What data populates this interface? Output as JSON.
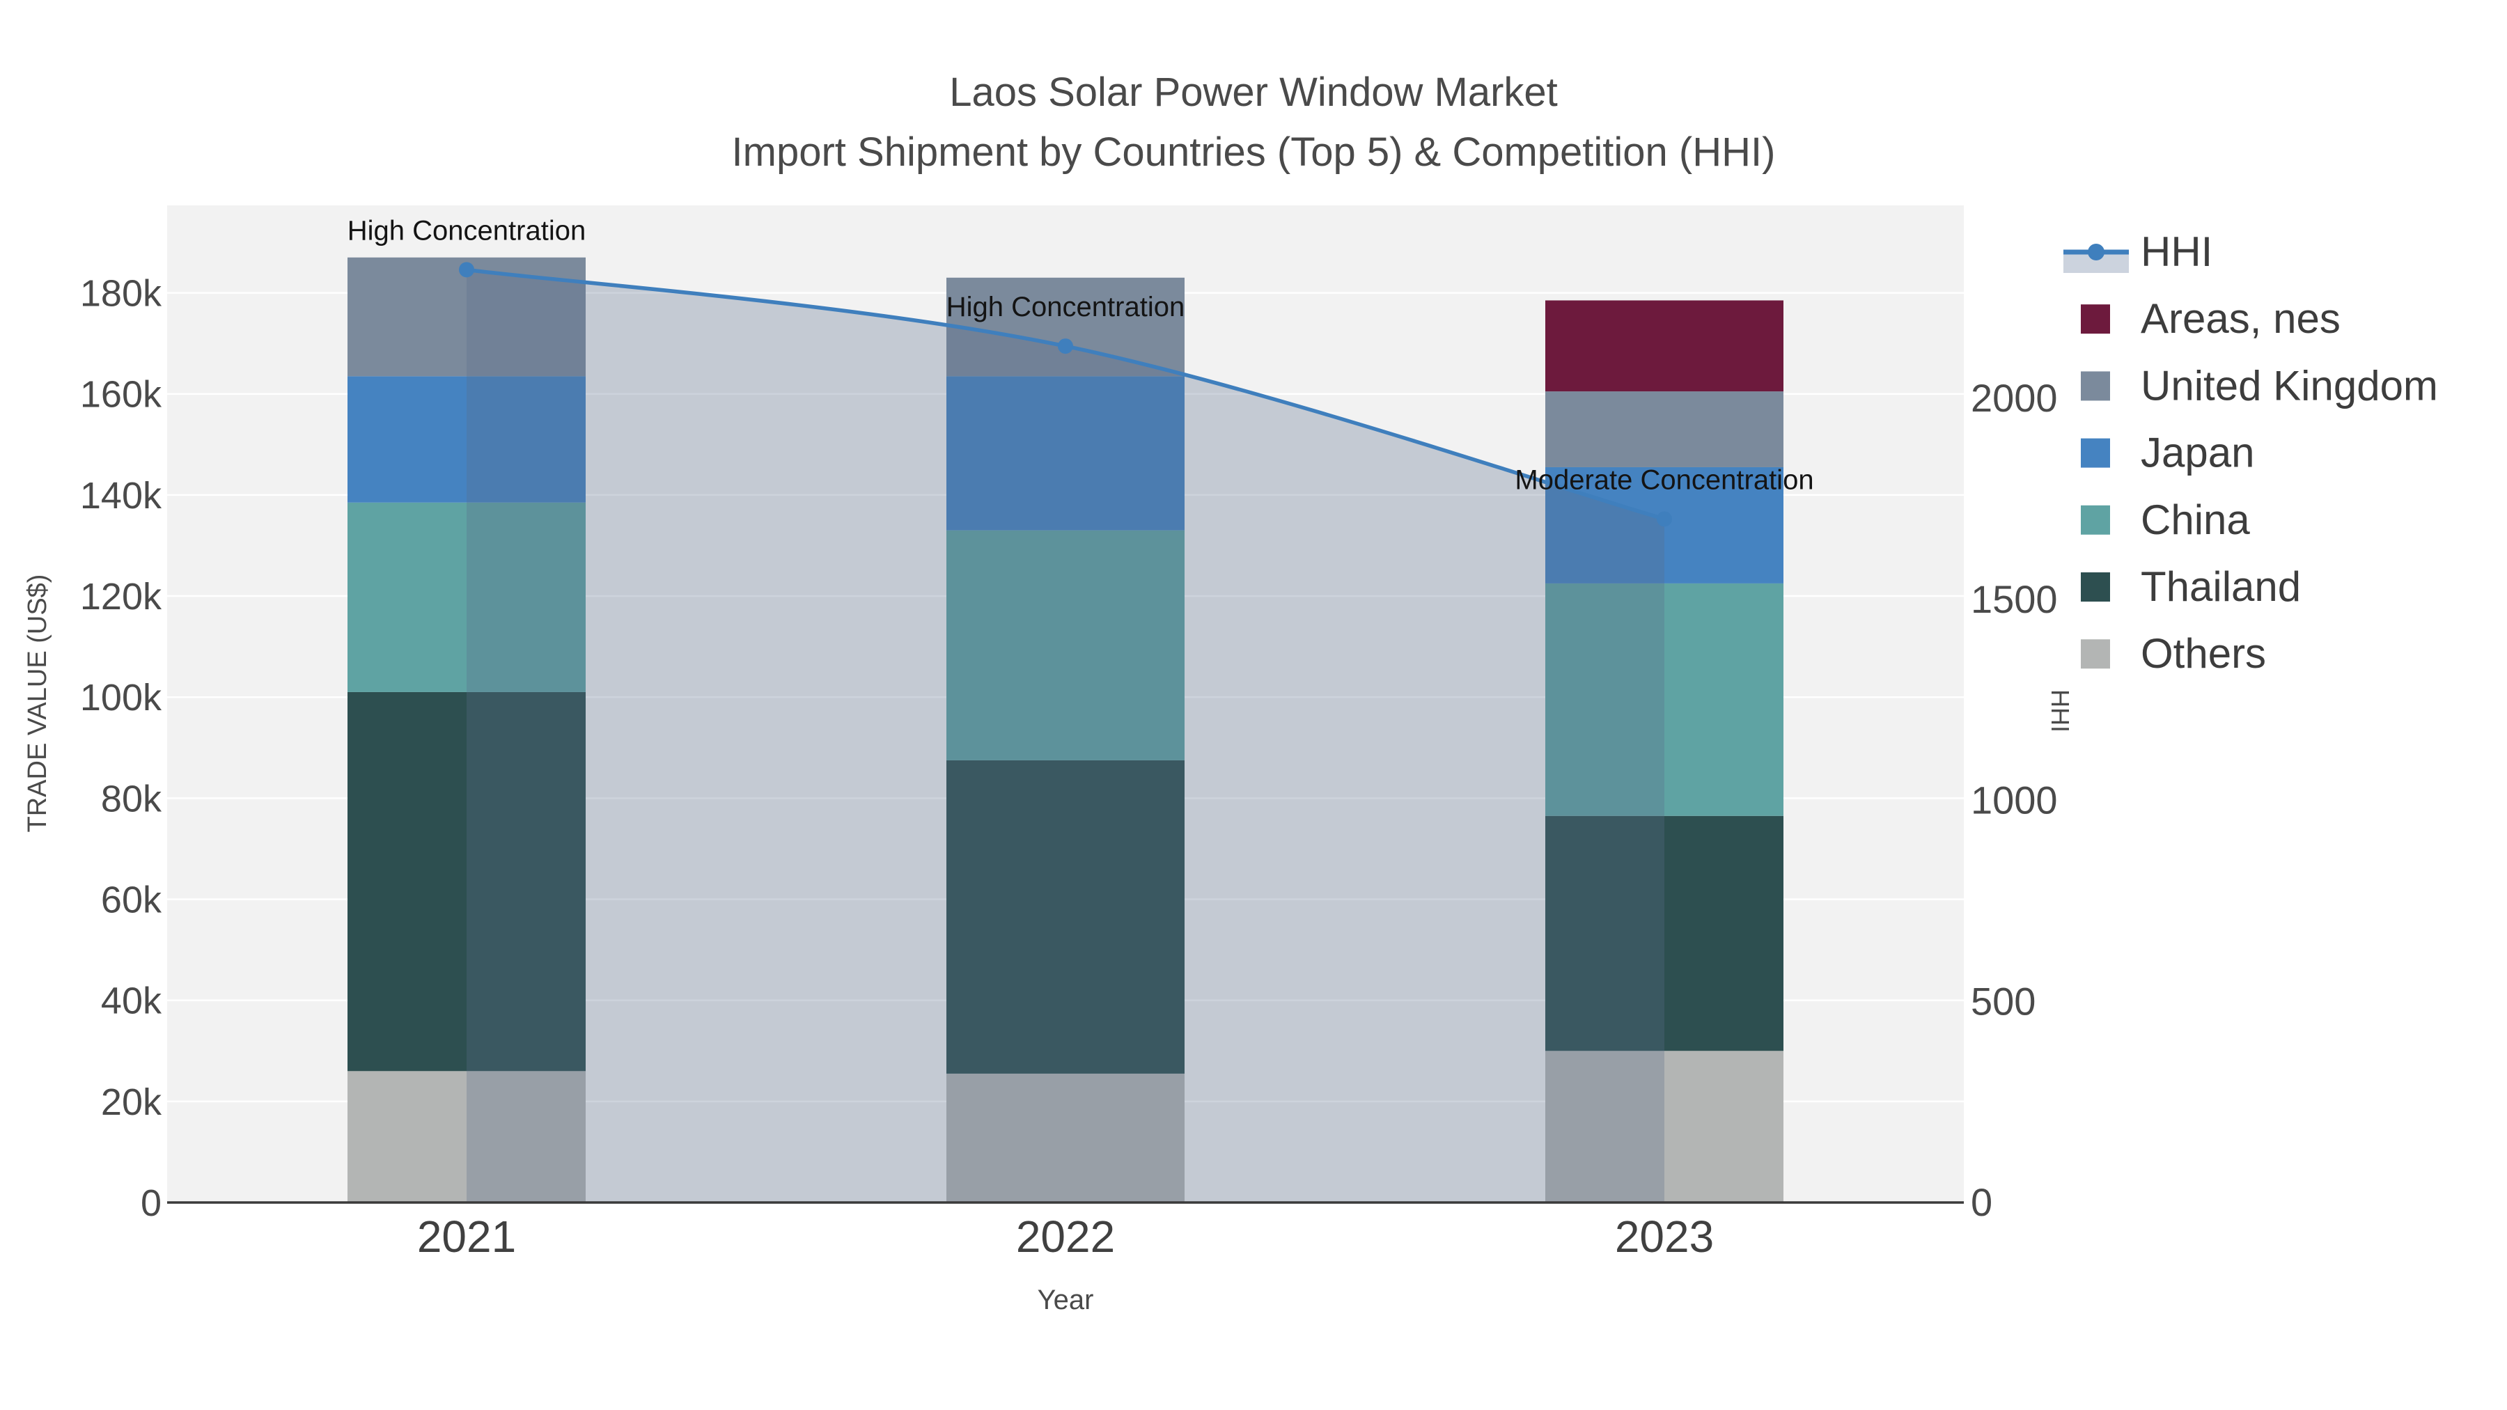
{
  "title": {
    "line1": "Laos Solar Power Window Market",
    "line2": "Import Shipment by Countries (Top 5) & Competition (HHI)"
  },
  "axes": {
    "x": {
      "title": "Year",
      "tick_labels": [
        "2021",
        "2022",
        "2023"
      ]
    },
    "y_left": {
      "title": "TRADE VALUE (US$)",
      "ticks": [
        {
          "value": 0,
          "label": "0"
        },
        {
          "value": 20000,
          "label": "20k"
        },
        {
          "value": 40000,
          "label": "40k"
        },
        {
          "value": 60000,
          "label": "60k"
        },
        {
          "value": 80000,
          "label": "80k"
        },
        {
          "value": 100000,
          "label": "100k"
        },
        {
          "value": 120000,
          "label": "120k"
        },
        {
          "value": 140000,
          "label": "140k"
        },
        {
          "value": 160000,
          "label": "160k"
        },
        {
          "value": 180000,
          "label": "180k"
        }
      ]
    },
    "y_right": {
      "title": "HHI",
      "ticks": [
        {
          "value": 0,
          "label": "0"
        },
        {
          "value": 500,
          "label": "500"
        },
        {
          "value": 1000,
          "label": "1000"
        },
        {
          "value": 1500,
          "label": "1500"
        },
        {
          "value": 2000,
          "label": "2000"
        }
      ]
    }
  },
  "legend": {
    "items": [
      {
        "label": "HHI",
        "type": "line",
        "color": "#3f7fbd",
        "band": "#ccd3de"
      },
      {
        "label": "Areas, nes",
        "type": "swatch",
        "color": "#6d1a3d"
      },
      {
        "label": "United Kingdom",
        "type": "swatch",
        "color": "#7b8a9c"
      },
      {
        "label": "Japan",
        "type": "swatch",
        "color": "#4583c1"
      },
      {
        "label": "China",
        "type": "swatch",
        "color": "#5fa3a3"
      },
      {
        "label": "Thailand",
        "type": "swatch",
        "color": "#2d4f50"
      },
      {
        "label": "Others",
        "type": "swatch",
        "color": "#b3b5b4"
      }
    ]
  },
  "annotations": [
    {
      "text": "High Concentration",
      "category_index": 0,
      "hhi": 2320
    },
    {
      "text": "High Concentration",
      "category_index": 1,
      "hhi": 2130
    },
    {
      "text": "Moderate Concentration",
      "category_index": 2,
      "hhi": 1700
    }
  ],
  "colors": {
    "plot_background": "#f2f2f2",
    "gridline": "#ffffff",
    "axis_line": "#3a3a3a",
    "title_text": "#4a4a4a",
    "tick_text": "#4a4a4a",
    "annotation_text": "#141414",
    "hhi_line": "#3f7fbd",
    "hhi_fill": "rgba(88,108,138,0.30)"
  },
  "chart_data": {
    "type": "combo: stacked-bar + line (secondary axis)",
    "title": "Laos Solar Power Window Market — Import Shipment by Countries (Top 5) & Competition (HHI)",
    "categories": [
      "2021",
      "2022",
      "2023"
    ],
    "xlabel": "Year",
    "ylabel_left": "TRADE VALUE (US$)",
    "ylabel_right": "HHI",
    "ylim_left": [
      0,
      197300
    ],
    "ylim_right": [
      0,
      2480
    ],
    "grid": true,
    "legend_position": "right",
    "bar_series_bottom_to_top": [
      {
        "name": "Others",
        "color": "#b3b5b4",
        "values": [
          26000,
          25500,
          30000
        ]
      },
      {
        "name": "Thailand",
        "color": "#2d4f50",
        "values": [
          75000,
          62000,
          46500
        ]
      },
      {
        "name": "China",
        "color": "#5fa3a3",
        "values": [
          37500,
          45500,
          46000
        ]
      },
      {
        "name": "Japan",
        "color": "#4583c1",
        "values": [
          25000,
          30500,
          23000
        ]
      },
      {
        "name": "United Kingdom",
        "color": "#7b8a9c",
        "values": [
          23500,
          19500,
          15000
        ]
      },
      {
        "name": "Areas, nes",
        "color": "#6d1a3d",
        "values": [
          0,
          0,
          18000
        ]
      }
    ],
    "bar_totals": [
      187000,
      183000,
      178500
    ],
    "line_series": {
      "name": "HHI",
      "color": "#3f7fbd",
      "values": [
        2320,
        2130,
        1700
      ],
      "area_fill": true,
      "smoothing": "spline"
    }
  }
}
